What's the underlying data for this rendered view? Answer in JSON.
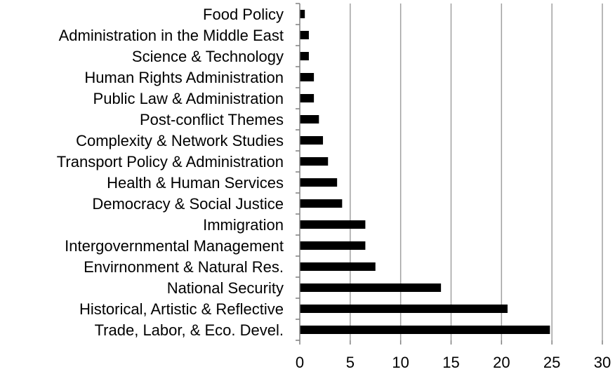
{
  "chart_data": {
    "type": "bar",
    "orientation": "horizontal",
    "categories": [
      "Food Policy",
      "Administration in the Middle East",
      "Science & Technology",
      "Human Rights Administration",
      "Public Law & Administration",
      "Post-conflict Themes",
      "Complexity & Network Studies",
      "Transport Policy & Administration",
      "Health & Human Services",
      "Democracy & Social Justice",
      "Immigration",
      "Intergovernmental Management",
      "Envirnonment & Natural Res.",
      "National Security",
      "Historical, Artistic & Reflective",
      "Trade, Labor, & Eco. Devel."
    ],
    "values": [
      0.5,
      0.9,
      0.9,
      1.4,
      1.4,
      1.9,
      2.3,
      2.8,
      3.7,
      4.2,
      6.5,
      6.5,
      7.5,
      14.0,
      20.6,
      24.8
    ],
    "xlim": [
      0,
      30
    ],
    "xticks": [
      "0",
      "5",
      "10",
      "15",
      "20",
      "25",
      "30"
    ],
    "grid": true,
    "legend": "none",
    "title": "",
    "xlabel": "",
    "ylabel": "",
    "colors": {
      "bar": "#000000",
      "grid": "#a0a0a0",
      "axis": "#808080"
    }
  }
}
